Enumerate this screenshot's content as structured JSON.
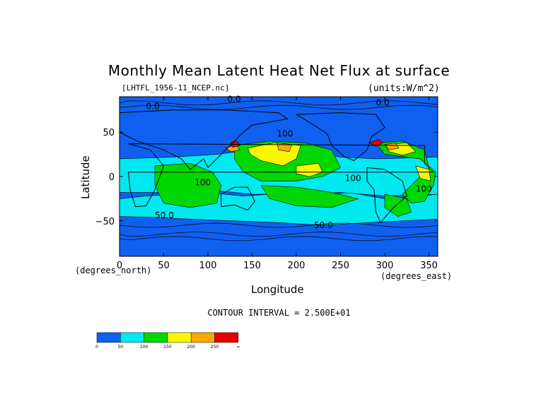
{
  "chart_data": {
    "type": "heatmap",
    "title": "Monthly Mean Latent Heat Net Flux at surface",
    "subtitle_left": "[LHTFL_1956-11_NCEP.nc]",
    "subtitle_right": "(units:W/m^2)",
    "xlabel": "Longitude",
    "ylabel": "Latitude",
    "x_unit_label": "(degrees_east)",
    "y_unit_label": "(degrees_north)",
    "xlim": [
      0,
      360
    ],
    "ylim": [
      -90,
      90
    ],
    "x_ticks": [
      0,
      50,
      100,
      150,
      200,
      250,
      300,
      350
    ],
    "y_ticks": [
      50,
      0,
      -50
    ],
    "x_tick_labels": [
      "0",
      "50",
      "100",
      "150",
      "200",
      "250",
      "300",
      "350"
    ],
    "y_tick_labels": [
      "50",
      "0",
      "−50"
    ],
    "contour_interval": "CONTOUR INTERVAL = 2.500E+01",
    "contour_labels": [
      {
        "text": "0.0",
        "lon": 122,
        "lat": 84
      },
      {
        "text": "0.0",
        "lon": 290,
        "lat": 80
      },
      {
        "text": "0.0",
        "lon": 30,
        "lat": 76
      },
      {
        "text": "100",
        "lon": 178,
        "lat": 45
      },
      {
        "text": "100",
        "lon": 85,
        "lat": -10
      },
      {
        "text": "100",
        "lon": 255,
        "lat": -5
      },
      {
        "text": "100",
        "lon": 335,
        "lat": -17
      },
      {
        "text": "50.0",
        "lon": 220,
        "lat": -58
      },
      {
        "text": "50.0",
        "lon": 40,
        "lat": -47
      }
    ],
    "colorbar": {
      "colors": [
        "#1060f0",
        "#00e8f0",
        "#00d800",
        "#f8f800",
        "#f8a800",
        "#e80000"
      ],
      "tick_labels": [
        "0",
        "50",
        "100",
        "150",
        "200",
        "250",
        "∞"
      ]
    }
  },
  "colors": {
    "ocean_low": "#1060f0",
    "cyan": "#00e8f0",
    "green": "#00d800",
    "yellow": "#f8f800",
    "orange": "#f8a800",
    "red": "#e80000",
    "land": "#1060f0"
  }
}
